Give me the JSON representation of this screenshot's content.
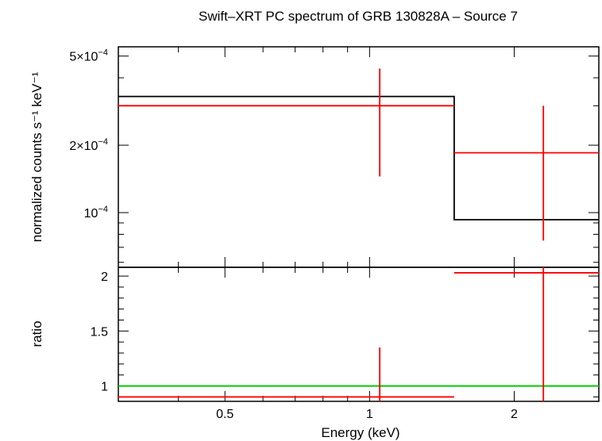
{
  "chart_data": [
    {
      "panel": "top",
      "type": "line",
      "title": "Swift–XRT PC spectrum of GRB 130828A – Source 7",
      "xlabel": "",
      "ylabel": "normalized counts s⁻¹ keV⁻¹",
      "x_scale": "log",
      "y_scale": "log",
      "xlim": [
        0.3,
        3.0
      ],
      "ylim": [
        5.7e-05,
        0.00055
      ],
      "yticks": [
        {
          "value": 0.0005,
          "label_base": "5×10",
          "label_exp": "−4"
        },
        {
          "value": 0.0002,
          "label_base": "2×10",
          "label_exp": "−4"
        },
        {
          "value": 0.0001,
          "label_base": "10",
          "label_exp": "−4"
        }
      ],
      "model": {
        "color": "#000000",
        "steps": [
          {
            "x0": 0.3,
            "x1": 1.5,
            "y": 0.00033
          },
          {
            "x0": 1.5,
            "x1": 3.0,
            "y": 9.3e-05
          }
        ]
      },
      "data_points": {
        "color": "#ff0000",
        "points": [
          {
            "x": 1.05,
            "x_lo": 0.3,
            "x_hi": 1.5,
            "y": 0.0003,
            "y_lo": 0.000145,
            "y_hi": 0.00044
          },
          {
            "x": 2.3,
            "x_lo": 1.5,
            "x_hi": 3.0,
            "y": 0.000185,
            "y_lo": 7.5e-05,
            "y_hi": 0.0003
          }
        ]
      }
    },
    {
      "panel": "bottom",
      "type": "scatter",
      "title": "",
      "xlabel": "Energy (keV)",
      "ylabel": "ratio",
      "x_scale": "log",
      "y_scale": "linear",
      "xlim": [
        0.3,
        3.0
      ],
      "ylim": [
        0.86,
        2.08
      ],
      "xticks": [
        {
          "value": 0.5,
          "label": "0.5"
        },
        {
          "value": 1,
          "label": "1"
        },
        {
          "value": 2,
          "label": "2"
        }
      ],
      "yticks": [
        {
          "value": 1,
          "label": "1"
        },
        {
          "value": 1.5,
          "label": "1.5"
        },
        {
          "value": 2,
          "label": "2"
        }
      ],
      "reference_line": {
        "y": 1,
        "color": "#00cc00"
      },
      "data_points": {
        "color": "#ff0000",
        "points": [
          {
            "x": 1.05,
            "x_lo": 0.3,
            "x_hi": 1.5,
            "y": 0.9,
            "y_lo": 0.86,
            "y_hi": 1.35
          },
          {
            "x": 2.3,
            "x_lo": 1.5,
            "x_hi": 3.0,
            "y": 2.03,
            "y_lo": 0.86,
            "y_hi": 2.08
          }
        ]
      }
    }
  ]
}
